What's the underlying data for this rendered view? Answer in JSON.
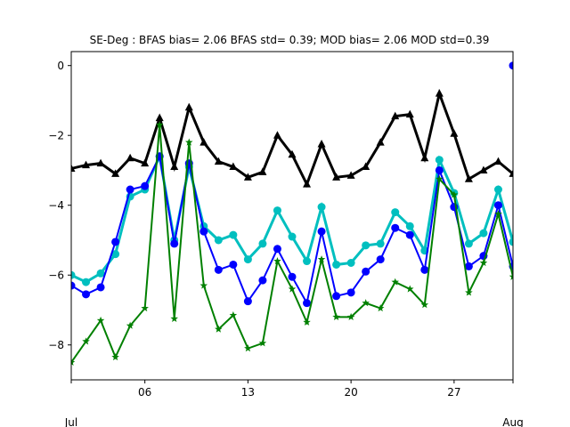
{
  "chart_data": {
    "type": "line",
    "title": "SE-Deg   : BFAS bias= 2.06 BFAS std= 0.39; MOD bias= 2.06 MOD std=0.39",
    "xlabel": "",
    "ylabel": "",
    "x": [
      1,
      2,
      3,
      4,
      5,
      6,
      7,
      8,
      9,
      10,
      11,
      12,
      13,
      14,
      15,
      16,
      17,
      18,
      19,
      20,
      21,
      22,
      23,
      24,
      25,
      26,
      27,
      28,
      29,
      30,
      31
    ],
    "xlim": [
      1,
      31
    ],
    "ylim": [
      -9.0,
      0.4
    ],
    "x_ticks": [
      {
        "value": 1,
        "label": ""
      },
      {
        "value": 6,
        "label": "06"
      },
      {
        "value": 13,
        "label": "13"
      },
      {
        "value": 20,
        "label": "20"
      },
      {
        "value": 27,
        "label": "27"
      },
      {
        "value": 31,
        "label": ""
      }
    ],
    "x_month_labels": [
      {
        "value": 1,
        "label": "Jul"
      },
      {
        "value": 31,
        "label": "Aug"
      }
    ],
    "y_ticks": [
      0,
      -2,
      -4,
      -6,
      -8
    ],
    "grid": false,
    "legend": "none",
    "series": [
      {
        "color": "#000000",
        "marker": "triangle",
        "line_width": 3,
        "values": [
          -2.95,
          -2.85,
          -2.8,
          -3.1,
          -2.65,
          -2.8,
          -1.5,
          -2.9,
          -1.2,
          -2.2,
          -2.75,
          -2.9,
          -3.2,
          -3.05,
          -2.0,
          -2.55,
          -3.4,
          -2.25,
          -3.2,
          -3.15,
          -2.9,
          -2.2,
          -1.45,
          -1.4,
          -2.65,
          -0.8,
          -1.95,
          -3.25,
          -3.0,
          -2.75,
          -3.1
        ]
      },
      {
        "color": "#00bfbf",
        "marker": "circle",
        "line_width": 3,
        "values": [
          -6.0,
          -6.2,
          -5.95,
          -5.4,
          -3.75,
          -3.55,
          -2.6,
          -5.0,
          -2.9,
          -4.6,
          -5.0,
          -4.85,
          -5.55,
          -5.1,
          -4.15,
          -4.9,
          -5.6,
          -4.05,
          -5.7,
          -5.65,
          -5.15,
          -5.1,
          -4.2,
          -4.6,
          -5.3,
          -2.7,
          -3.65,
          -5.1,
          -4.8,
          -3.55,
          -5.05
        ]
      },
      {
        "color": "#0000ff",
        "marker": "circle",
        "line_width": 2,
        "values": [
          -6.3,
          -6.55,
          -6.35,
          -5.05,
          -3.55,
          -3.45,
          -2.6,
          -5.1,
          -2.8,
          -4.75,
          -5.85,
          -5.7,
          -6.75,
          -6.15,
          -5.25,
          -6.05,
          -6.8,
          -4.75,
          -6.6,
          -6.5,
          -5.9,
          -5.55,
          -4.65,
          -4.85,
          -5.85,
          -3.0,
          -4.05,
          -5.75,
          -5.45,
          -4.0,
          -5.75
        ]
      },
      {
        "color": "#008000",
        "marker": "star",
        "line_width": 2,
        "values": [
          -8.5,
          -7.9,
          -7.3,
          -8.35,
          -7.45,
          -6.95,
          -1.7,
          -7.25,
          -2.2,
          -6.3,
          -7.55,
          -7.15,
          -8.1,
          -7.95,
          -5.6,
          -6.4,
          -7.35,
          -5.55,
          -7.2,
          -7.2,
          -6.8,
          -6.95,
          -6.2,
          -6.4,
          -6.85,
          -3.25,
          -3.7,
          -6.5,
          -5.65,
          -4.25,
          -6.05
        ]
      },
      {
        "color": "#0000ff",
        "marker": "circle",
        "line_width": 0,
        "values": [
          null,
          null,
          null,
          null,
          null,
          null,
          null,
          null,
          null,
          null,
          null,
          null,
          null,
          null,
          null,
          null,
          null,
          null,
          null,
          null,
          null,
          null,
          null,
          null,
          null,
          null,
          null,
          null,
          null,
          null,
          0.0
        ]
      }
    ]
  }
}
